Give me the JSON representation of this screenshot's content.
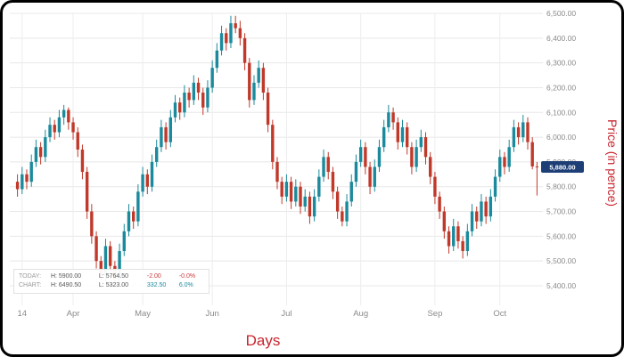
{
  "chart_data": {
    "type": "candlestick",
    "title": "",
    "xlabel": "Days",
    "ylabel": "Price (in pence)",
    "ylim": [
      5400,
      6500
    ],
    "grid": true,
    "up_color": "#1b8a9c",
    "down_color": "#c0392b",
    "badge_color": "#1d3f76",
    "last_price": 5880,
    "last_price_label": "5,880.00",
    "y_ticks": [
      {
        "value": 5400,
        "label": "5,400.00"
      },
      {
        "value": 5500,
        "label": "5,500.00"
      },
      {
        "value": 5600,
        "label": "5,600.00"
      },
      {
        "value": 5700,
        "label": "5,700.00"
      },
      {
        "value": 5800,
        "label": "5,800.00"
      },
      {
        "value": 5900,
        "label": "5,900.00"
      },
      {
        "value": 6000,
        "label": "6,000.00"
      },
      {
        "value": 6100,
        "label": "6,100.00"
      },
      {
        "value": 6200,
        "label": "6,200.00"
      },
      {
        "value": 6300,
        "label": "6,300.00"
      },
      {
        "value": 6400,
        "label": "6,400.00"
      },
      {
        "value": 6500,
        "label": "6,500.00"
      }
    ],
    "x_ticks": [
      {
        "label": "14",
        "index": 1
      },
      {
        "label": "Apr",
        "index": 12
      },
      {
        "label": "May",
        "index": 27
      },
      {
        "label": "Jun",
        "index": 42
      },
      {
        "label": "Jul",
        "index": 58
      },
      {
        "label": "Aug",
        "index": 74
      },
      {
        "label": "Sep",
        "index": 90
      },
      {
        "label": "Oct",
        "index": 104
      }
    ],
    "legend": {
      "today_label": "TODAY:",
      "today_high": "H: 5900.00",
      "today_low": "L: 5764.50",
      "today_change": "-2.00",
      "today_change_pct": "-0.0%",
      "chart_label": "CHART:",
      "chart_high": "H: 6490.50",
      "chart_low": "L: 5323.00",
      "chart_change": "332.50",
      "chart_change_pct": "6.0%"
    },
    "candles": [
      [
        5820,
        5850,
        5760,
        5790
      ],
      [
        5790,
        5880,
        5770,
        5850
      ],
      [
        5850,
        5870,
        5790,
        5820
      ],
      [
        5820,
        5930,
        5800,
        5900
      ],
      [
        5900,
        5990,
        5880,
        5960
      ],
      [
        5960,
        5980,
        5890,
        5920
      ],
      [
        5920,
        6030,
        5900,
        6000
      ],
      [
        6000,
        6080,
        5980,
        6050
      ],
      [
        6050,
        6070,
        5990,
        6020
      ],
      [
        6020,
        6110,
        6000,
        6080
      ],
      [
        6080,
        6130,
        6050,
        6110
      ],
      [
        6110,
        6120,
        6030,
        6060
      ],
      [
        6060,
        6080,
        5990,
        6020
      ],
      [
        6020,
        6040,
        5920,
        5950
      ],
      [
        5950,
        5970,
        5830,
        5860
      ],
      [
        5860,
        5880,
        5670,
        5700
      ],
      [
        5700,
        5730,
        5570,
        5600
      ],
      [
        5600,
        5620,
        5470,
        5500
      ],
      [
        5500,
        5520,
        5430,
        5440
      ],
      [
        5440,
        5590,
        5420,
        5560
      ],
      [
        5560,
        5580,
        5450,
        5480
      ],
      [
        5480,
        5500,
        5410,
        5430
      ],
      [
        5430,
        5570,
        5410,
        5540
      ],
      [
        5540,
        5650,
        5520,
        5620
      ],
      [
        5620,
        5730,
        5600,
        5700
      ],
      [
        5700,
        5720,
        5630,
        5660
      ],
      [
        5660,
        5810,
        5640,
        5780
      ],
      [
        5780,
        5880,
        5760,
        5850
      ],
      [
        5850,
        5870,
        5770,
        5800
      ],
      [
        5800,
        5930,
        5780,
        5900
      ],
      [
        5900,
        5990,
        5880,
        5960
      ],
      [
        5960,
        6070,
        5940,
        6040
      ],
      [
        6040,
        6060,
        5950,
        5980
      ],
      [
        5980,
        6110,
        5960,
        6080
      ],
      [
        6080,
        6170,
        6060,
        6140
      ],
      [
        6140,
        6160,
        6070,
        6100
      ],
      [
        6100,
        6210,
        6080,
        6180
      ],
      [
        6180,
        6200,
        6120,
        6150
      ],
      [
        6150,
        6250,
        6130,
        6220
      ],
      [
        6220,
        6240,
        6150,
        6180
      ],
      [
        6180,
        6200,
        6090,
        6120
      ],
      [
        6120,
        6230,
        6100,
        6200
      ],
      [
        6200,
        6310,
        6180,
        6280
      ],
      [
        6280,
        6380,
        6260,
        6350
      ],
      [
        6350,
        6450,
        6330,
        6420
      ],
      [
        6420,
        6440,
        6350,
        6380
      ],
      [
        6380,
        6490,
        6360,
        6460
      ],
      [
        6460,
        6490,
        6420,
        6440
      ],
      [
        6440,
        6470,
        6370,
        6400
      ],
      [
        6400,
        6420,
        6270,
        6300
      ],
      [
        6300,
        6320,
        6120,
        6150
      ],
      [
        6150,
        6250,
        6130,
        6220
      ],
      [
        6220,
        6310,
        6200,
        6280
      ],
      [
        6280,
        6300,
        6150,
        6180
      ],
      [
        6180,
        6200,
        6020,
        6050
      ],
      [
        6050,
        6070,
        5870,
        5900
      ],
      [
        5900,
        5920,
        5790,
        5820
      ],
      [
        5820,
        5840,
        5730,
        5760
      ],
      [
        5760,
        5850,
        5740,
        5820
      ],
      [
        5820,
        5840,
        5710,
        5740
      ],
      [
        5740,
        5830,
        5720,
        5800
      ],
      [
        5800,
        5820,
        5690,
        5720
      ],
      [
        5720,
        5790,
        5700,
        5760
      ],
      [
        5760,
        5780,
        5650,
        5680
      ],
      [
        5680,
        5790,
        5660,
        5760
      ],
      [
        5760,
        5870,
        5740,
        5840
      ],
      [
        5840,
        5950,
        5820,
        5920
      ],
      [
        5920,
        5940,
        5830,
        5860
      ],
      [
        5860,
        5880,
        5750,
        5780
      ],
      [
        5780,
        5800,
        5670,
        5700
      ],
      [
        5700,
        5720,
        5640,
        5660
      ],
      [
        5660,
        5770,
        5640,
        5740
      ],
      [
        5740,
        5850,
        5720,
        5820
      ],
      [
        5820,
        5930,
        5800,
        5900
      ],
      [
        5900,
        5990,
        5880,
        5960
      ],
      [
        5960,
        5980,
        5850,
        5880
      ],
      [
        5880,
        5900,
        5770,
        5800
      ],
      [
        5800,
        5910,
        5780,
        5880
      ],
      [
        5880,
        5990,
        5860,
        5960
      ],
      [
        5960,
        6070,
        5940,
        6040
      ],
      [
        6040,
        6130,
        6020,
        6100
      ],
      [
        6100,
        6120,
        6030,
        6060
      ],
      [
        6060,
        6080,
        5950,
        5980
      ],
      [
        5980,
        6070,
        5960,
        6040
      ],
      [
        6040,
        6060,
        5930,
        5960
      ],
      [
        5960,
        5980,
        5850,
        5880
      ],
      [
        5880,
        5990,
        5860,
        5960
      ],
      [
        5960,
        6030,
        5940,
        6000
      ],
      [
        6000,
        6020,
        5890,
        5920
      ],
      [
        5920,
        5940,
        5810,
        5840
      ],
      [
        5840,
        5860,
        5730,
        5760
      ],
      [
        5760,
        5780,
        5670,
        5700
      ],
      [
        5700,
        5720,
        5590,
        5620
      ],
      [
        5620,
        5640,
        5530,
        5560
      ],
      [
        5560,
        5670,
        5540,
        5640
      ],
      [
        5640,
        5660,
        5550,
        5580
      ],
      [
        5580,
        5600,
        5510,
        5540
      ],
      [
        5540,
        5650,
        5520,
        5620
      ],
      [
        5620,
        5730,
        5600,
        5700
      ],
      [
        5700,
        5720,
        5630,
        5660
      ],
      [
        5660,
        5770,
        5640,
        5740
      ],
      [
        5740,
        5760,
        5650,
        5680
      ],
      [
        5680,
        5790,
        5660,
        5760
      ],
      [
        5760,
        5870,
        5740,
        5840
      ],
      [
        5840,
        5950,
        5820,
        5920
      ],
      [
        5920,
        5940,
        5850,
        5880
      ],
      [
        5880,
        5990,
        5860,
        5960
      ],
      [
        5960,
        6070,
        5940,
        6040
      ],
      [
        6040,
        6060,
        5970,
        6000
      ],
      [
        6000,
        6090,
        5980,
        6060
      ],
      [
        6060,
        6080,
        5950,
        5980
      ],
      [
        5980,
        6000,
        5870,
        5882
      ],
      [
        5882,
        5900,
        5764.5,
        5880
      ]
    ]
  }
}
